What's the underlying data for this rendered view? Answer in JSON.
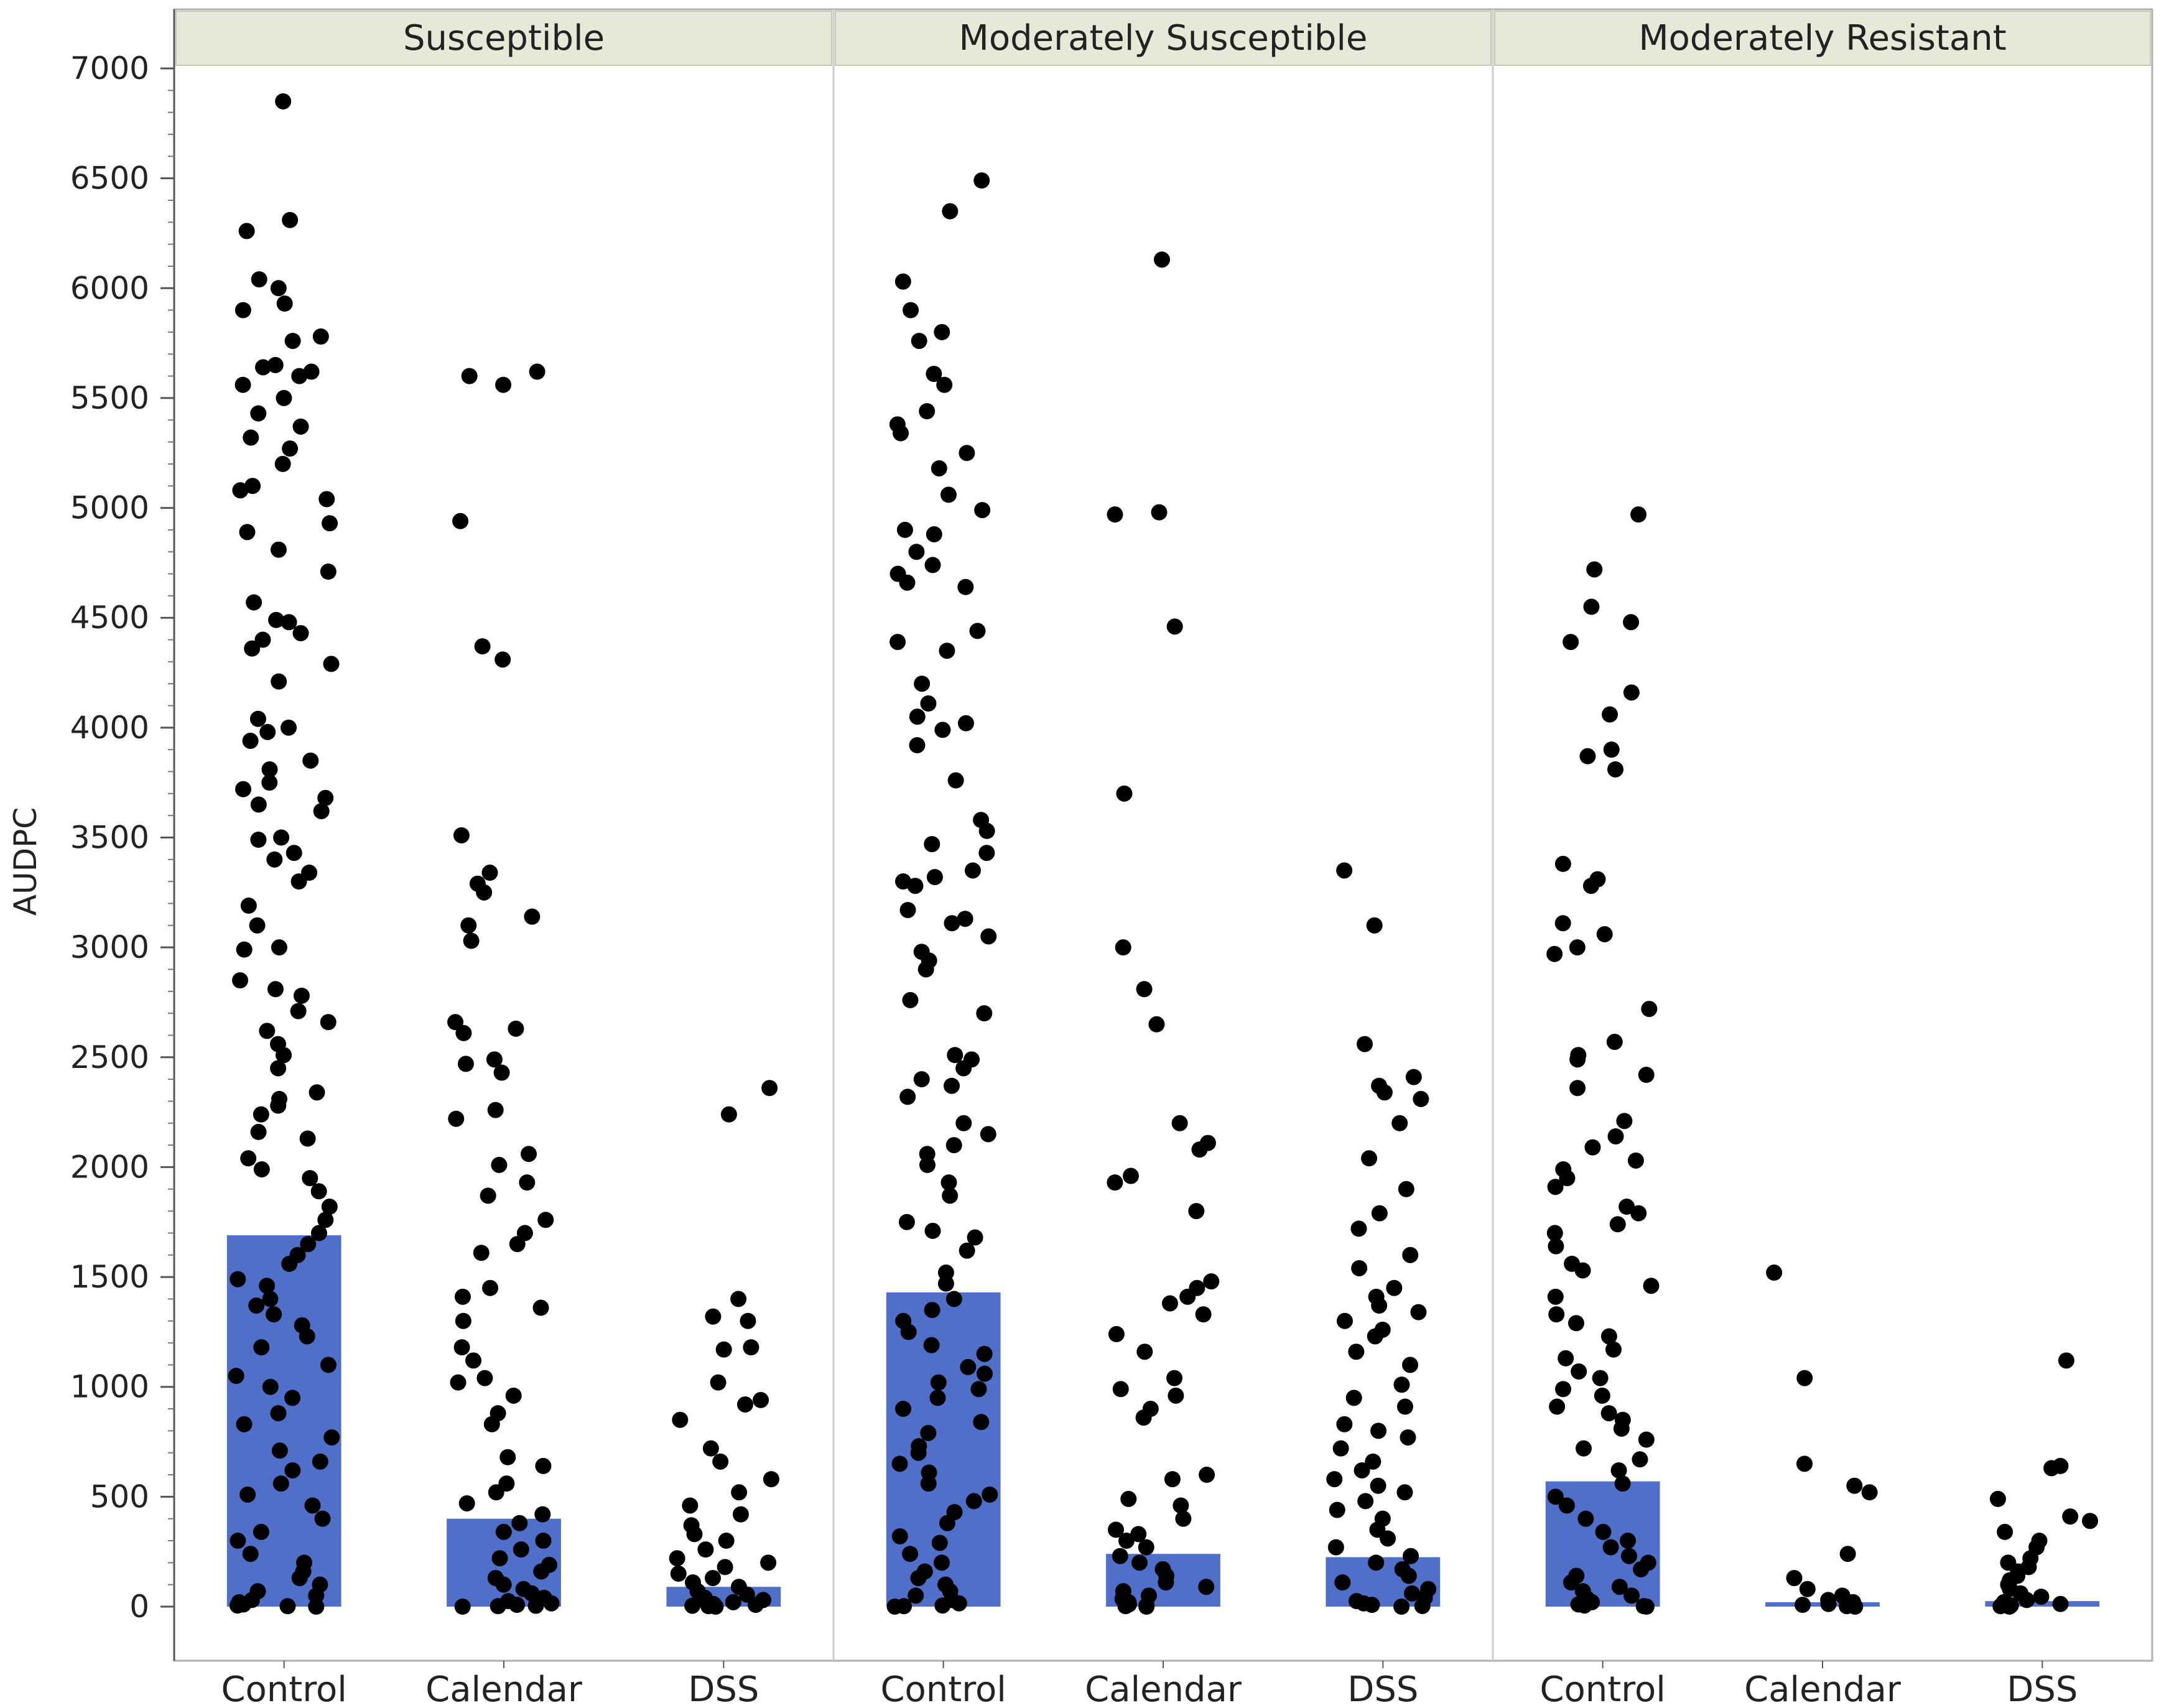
{
  "chart_data": {
    "type": "bar",
    "ylabel": "AUDPC",
    "ylim": [
      0,
      7000
    ],
    "yticks": [
      0,
      500,
      1000,
      1500,
      2000,
      2500,
      3000,
      3500,
      4000,
      4500,
      5000,
      5500,
      6000,
      6500,
      7000
    ],
    "grid": false,
    "colors": {
      "bar": "#4f6fc8",
      "point": "#000000",
      "header_bg": "#e8e8d8"
    },
    "panels": [
      {
        "title": "Susceptible",
        "categories": [
          "Control",
          "Calendar",
          "DSS"
        ],
        "bar_values": [
          1690,
          400,
          90
        ],
        "points": [
          [
            6850,
            6310,
            6260,
            6040,
            6000,
            5930,
            5900,
            5780,
            5760,
            5650,
            5640,
            5620,
            5600,
            5560,
            5500,
            5430,
            5370,
            5320,
            5270,
            5200,
            5100,
            5080,
            5040,
            4930,
            4890,
            4810,
            4710,
            4570,
            4490,
            4480,
            4430,
            4400,
            4360,
            4290,
            4210,
            4040,
            4000,
            3980,
            3940,
            3850,
            3810,
            3750,
            3720,
            3680,
            3650,
            3620,
            3500,
            3490,
            3430,
            3400,
            3340,
            3300,
            3190,
            3100,
            3000,
            2990,
            2850,
            2810,
            2780,
            2710,
            2660,
            2620,
            2560,
            2510,
            2450,
            2340,
            2310,
            2280,
            2240,
            2160,
            2130,
            2040,
            1990,
            1950,
            1890,
            1820,
            1760,
            1700,
            1650,
            1600,
            1560,
            1490,
            1460,
            1400,
            1370,
            1330,
            1280,
            1230,
            1180,
            1100,
            1050,
            1000,
            950,
            880,
            830,
            770,
            710,
            660,
            620,
            560,
            510,
            460,
            400,
            340,
            300,
            240,
            200,
            160,
            130,
            100,
            70,
            50,
            30,
            20,
            10,
            5,
            2,
            0
          ],
          [
            5620,
            5600,
            5560,
            4940,
            4370,
            4310,
            3510,
            3340,
            3290,
            3250,
            3140,
            3100,
            3030,
            2660,
            2630,
            2610,
            2490,
            2470,
            2430,
            2260,
            2220,
            2060,
            2010,
            1930,
            1870,
            1760,
            1700,
            1650,
            1610,
            1450,
            1410,
            1360,
            1300,
            1180,
            1120,
            1040,
            1020,
            960,
            880,
            830,
            680,
            640,
            560,
            520,
            470,
            420,
            380,
            340,
            300,
            260,
            220,
            190,
            160,
            130,
            100,
            80,
            60,
            40,
            25,
            15,
            8,
            4,
            2,
            0
          ],
          [
            2360,
            2240,
            1400,
            1320,
            1300,
            1180,
            1170,
            1020,
            940,
            920,
            850,
            720,
            660,
            580,
            520,
            460,
            420,
            370,
            330,
            300,
            260,
            220,
            200,
            180,
            150,
            130,
            110,
            90,
            70,
            55,
            40,
            30,
            20,
            12,
            8,
            4,
            2,
            0
          ]
        ]
      },
      {
        "title": "Moderately Susceptible",
        "categories": [
          "Control",
          "Calendar",
          "DSS"
        ],
        "bar_values": [
          1430,
          240,
          225
        ],
        "points": [
          [
            6490,
            6350,
            6030,
            5900,
            5800,
            5760,
            5610,
            5560,
            5440,
            5380,
            5340,
            5250,
            5180,
            5060,
            4990,
            4900,
            4880,
            4800,
            4740,
            4700,
            4660,
            4640,
            4440,
            4390,
            4350,
            4200,
            4110,
            4050,
            4020,
            3990,
            3920,
            3760,
            3580,
            3530,
            3470,
            3430,
            3350,
            3320,
            3300,
            3280,
            3170,
            3130,
            3110,
            3050,
            2980,
            2940,
            2900,
            2760,
            2700,
            2510,
            2490,
            2450,
            2400,
            2370,
            2320,
            2200,
            2150,
            2100,
            2060,
            2010,
            1930,
            1870,
            1750,
            1710,
            1680,
            1620,
            1520,
            1470,
            1400,
            1350,
            1300,
            1250,
            1190,
            1150,
            1090,
            1060,
            1020,
            990,
            950,
            900,
            840,
            790,
            730,
            700,
            650,
            610,
            560,
            510,
            480,
            430,
            380,
            320,
            290,
            240,
            200,
            160,
            130,
            100,
            70,
            50,
            30,
            15,
            5,
            2,
            0
          ],
          [
            6130,
            4980,
            4970,
            4460,
            3700,
            3000,
            2810,
            2650,
            2200,
            2110,
            2080,
            1960,
            1930,
            1800,
            1480,
            1450,
            1410,
            1380,
            1330,
            1240,
            1160,
            1040,
            990,
            960,
            900,
            860,
            600,
            580,
            490,
            460,
            400,
            350,
            330,
            300,
            270,
            230,
            200,
            170,
            140,
            110,
            90,
            70,
            50,
            35,
            20,
            10,
            5,
            2,
            0
          ],
          [
            3350,
            3100,
            2560,
            2410,
            2370,
            2340,
            2310,
            2200,
            2040,
            1900,
            1790,
            1720,
            1600,
            1540,
            1450,
            1410,
            1370,
            1340,
            1300,
            1260,
            1230,
            1160,
            1100,
            1010,
            950,
            910,
            830,
            800,
            770,
            720,
            660,
            620,
            580,
            550,
            520,
            480,
            440,
            400,
            350,
            310,
            270,
            230,
            200,
            170,
            140,
            110,
            80,
            60,
            40,
            25,
            15,
            8,
            3,
            0
          ]
        ]
      },
      {
        "title": "Moderately Resistant",
        "categories": [
          "Control",
          "Calendar",
          "DSS"
        ],
        "bar_values": [
          570,
          20,
          25
        ],
        "points": [
          [
            4970,
            4720,
            4550,
            4480,
            4390,
            4160,
            4060,
            3900,
            3870,
            3810,
            3380,
            3310,
            3280,
            3110,
            3060,
            3000,
            2970,
            2720,
            2570,
            2510,
            2490,
            2420,
            2360,
            2210,
            2140,
            2090,
            2030,
            1990,
            1950,
            1910,
            1820,
            1790,
            1740,
            1700,
            1640,
            1560,
            1530,
            1460,
            1410,
            1330,
            1290,
            1230,
            1170,
            1130,
            1070,
            1040,
            990,
            960,
            910,
            880,
            850,
            810,
            760,
            720,
            670,
            620,
            560,
            500,
            460,
            400,
            340,
            300,
            270,
            230,
            200,
            170,
            140,
            110,
            90,
            70,
            50,
            35,
            20,
            10,
            5,
            2,
            0
          ],
          [
            1520,
            1040,
            650,
            550,
            520,
            240,
            130,
            80,
            50,
            30,
            20,
            12,
            8,
            5,
            2,
            0
          ],
          [
            1120,
            640,
            630,
            490,
            410,
            390,
            340,
            300,
            270,
            220,
            200,
            180,
            160,
            140,
            120,
            100,
            80,
            60,
            45,
            30,
            20,
            12,
            6,
            2,
            0
          ]
        ]
      }
    ]
  }
}
